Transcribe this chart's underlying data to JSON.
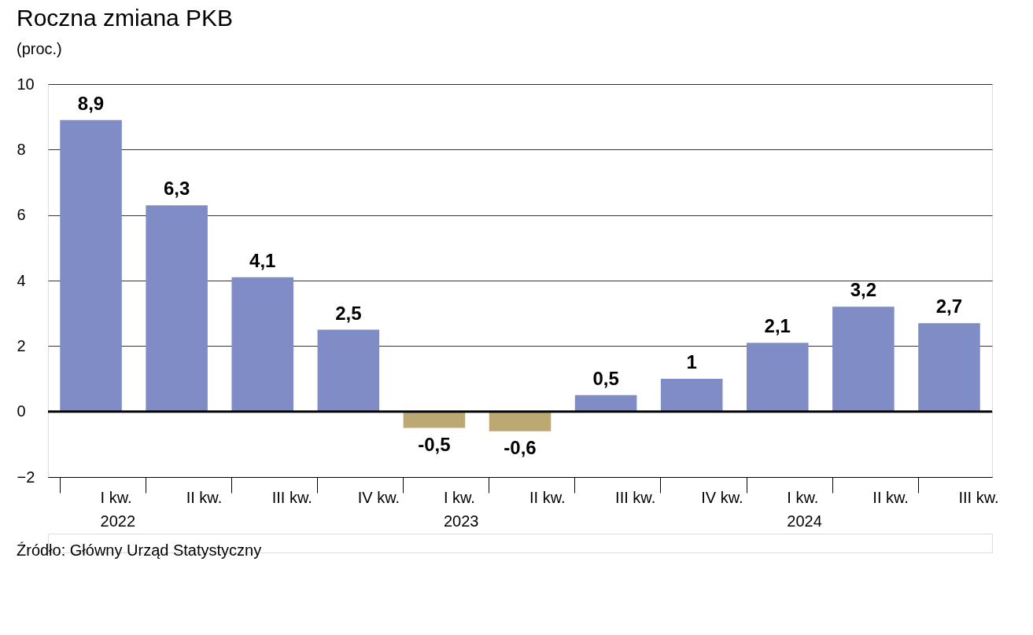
{
  "chart_data": {
    "type": "bar",
    "title": "Roczna zmiana PKB",
    "subtitle": "(proc.)",
    "categories": [
      "I kw.\n2022",
      "II kw.",
      "III kw.",
      "IV kw.",
      "I kw.\n2023",
      "II kw.",
      "III kw.",
      "IV kw.",
      "I kw.\n2024",
      "II kw.",
      "III kw."
    ],
    "values": [
      8.9,
      6.3,
      4.1,
      2.5,
      -0.5,
      -0.6,
      0.5,
      1,
      2.1,
      3.2,
      2.7
    ],
    "colors": [
      "#7f8cc6",
      "#7f8cc6",
      "#7f8cc6",
      "#7f8cc6",
      "#bba873",
      "#bba873",
      "#7f8cc6",
      "#7f8cc6",
      "#7f8cc6",
      "#7f8cc6",
      "#7f8cc6"
    ],
    "value_labels": [
      "8,9",
      "6,3",
      "4,1",
      "2,5",
      "-0,5",
      "-0,6",
      "0,5",
      "1",
      "2,1",
      "3,2",
      "2,7"
    ],
    "ylim": [
      -2,
      10
    ],
    "yticks": [
      -2,
      0,
      2,
      4,
      6,
      8,
      10
    ],
    "grid": "y",
    "ref_lines": [
      {
        "axis": "y",
        "value": 0,
        "color": "#000000"
      }
    ],
    "annotations": [
      "Źródło: Główny Urząd Statystyczny"
    ]
  }
}
